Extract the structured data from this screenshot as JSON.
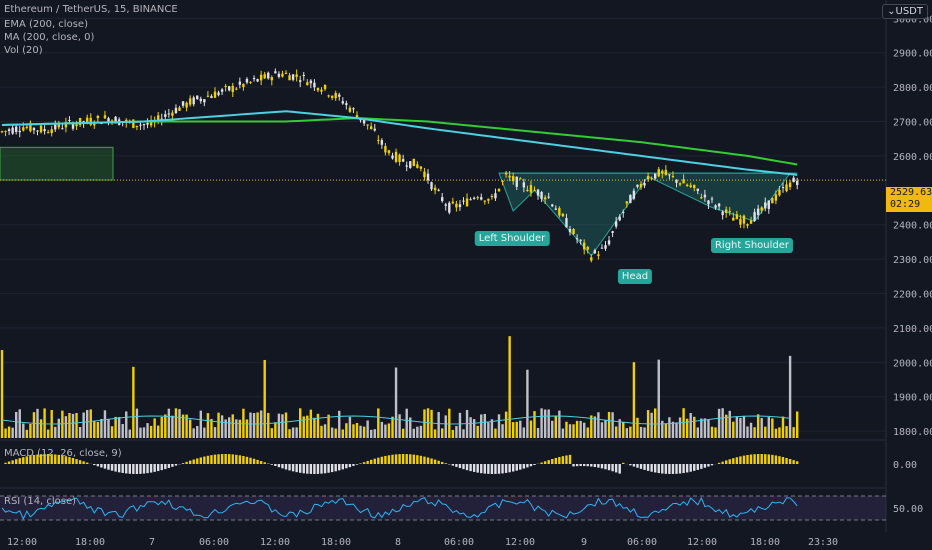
{
  "header": {
    "symbol": "Ethereum / TetherUS, 15, BINANCE",
    "indicators": [
      "EMA (200, close)",
      "MA (200, close, 0)",
      "Vol (20)"
    ],
    "currency": "USDT"
  },
  "price_tag": {
    "price": "2529.63",
    "countdown": "02:29"
  },
  "panes": {
    "macd_label": "MACD (12, 26, close, 9)",
    "rsi_label": "RSI (14, close)"
  },
  "pattern_labels": {
    "left": "Left Shoulder",
    "head": "Head",
    "right": "Right Shoulder"
  },
  "colors": {
    "bg": "#131722",
    "ema": "#4dd0e1",
    "ma": "#33cc33",
    "volume_up": "#f0d000",
    "volume_down": "#c0c0c8",
    "pattern": "#26a69a",
    "zone": "#2e7d32",
    "rsi": "#29b6f6"
  },
  "chart_data": {
    "type": "candlestick",
    "price_axis": {
      "ticks": [
        3000,
        2900,
        2800,
        2700,
        2600,
        2400,
        2300,
        2200,
        2100,
        2000,
        1900,
        1800
      ],
      "labels": [
        "3000.00",
        "2900.00",
        "2800.00",
        "2700.00",
        "2600.00",
        "2400.00",
        "2300.00",
        "2200.00",
        "2100.00",
        "2000.00",
        "1900.00",
        "1800.00"
      ],
      "ylim": [
        1780,
        3030
      ]
    },
    "macd_axis": {
      "ticks": [
        "0.00"
      ]
    },
    "rsi_axis": {
      "ticks": [
        "50.00"
      ]
    },
    "time_axis": [
      "12:00",
      "18:00",
      "7",
      "06:00",
      "12:00",
      "18:00",
      "8",
      "06:00",
      "12:00",
      "9",
      "06:00",
      "12:00",
      "18:00",
      "23:30"
    ],
    "price_path": [
      [
        0,
        2670
      ],
      [
        6,
        2685
      ],
      [
        12,
        2675
      ],
      [
        18,
        2690
      ],
      [
        24,
        2700
      ],
      [
        30,
        2710
      ],
      [
        36,
        2695
      ],
      [
        42,
        2690
      ],
      [
        48,
        2730
      ],
      [
        54,
        2760
      ],
      [
        60,
        2780
      ],
      [
        66,
        2800
      ],
      [
        72,
        2820
      ],
      [
        78,
        2840
      ],
      [
        84,
        2830
      ],
      [
        90,
        2800
      ],
      [
        96,
        2760
      ],
      [
        100,
        2720
      ],
      [
        104,
        2680
      ],
      [
        108,
        2620
      ],
      [
        112,
        2590
      ],
      [
        118,
        2570
      ],
      [
        122,
        2500
      ],
      [
        126,
        2450
      ],
      [
        130,
        2460
      ],
      [
        134,
        2490
      ],
      [
        138,
        2470
      ],
      [
        142,
        2540
      ],
      [
        146,
        2520
      ],
      [
        150,
        2500
      ],
      [
        154,
        2480
      ],
      [
        158,
        2420
      ],
      [
        162,
        2360
      ],
      [
        166,
        2310
      ],
      [
        170,
        2330
      ],
      [
        174,
        2420
      ],
      [
        178,
        2490
      ],
      [
        182,
        2540
      ],
      [
        186,
        2550
      ],
      [
        190,
        2530
      ],
      [
        194,
        2510
      ],
      [
        198,
        2480
      ],
      [
        202,
        2450
      ],
      [
        206,
        2420
      ],
      [
        210,
        2410
      ],
      [
        214,
        2440
      ],
      [
        218,
        2480
      ],
      [
        222,
        2520
      ],
      [
        224,
        2530
      ]
    ],
    "ema_200": [
      [
        0,
        2690
      ],
      [
        40,
        2700
      ],
      [
        80,
        2730
      ],
      [
        100,
        2710
      ],
      [
        120,
        2680
      ],
      [
        150,
        2640
      ],
      [
        180,
        2600
      ],
      [
        210,
        2560
      ],
      [
        224,
        2545
      ]
    ],
    "ma_200": [
      [
        0,
        2690
      ],
      [
        40,
        2700
      ],
      [
        80,
        2700
      ],
      [
        100,
        2710
      ],
      [
        120,
        2700
      ],
      [
        150,
        2670
      ],
      [
        180,
        2640
      ],
      [
        210,
        2600
      ],
      [
        224,
        2575
      ]
    ],
    "neckline": 2550,
    "last_price": 2529.63
  }
}
